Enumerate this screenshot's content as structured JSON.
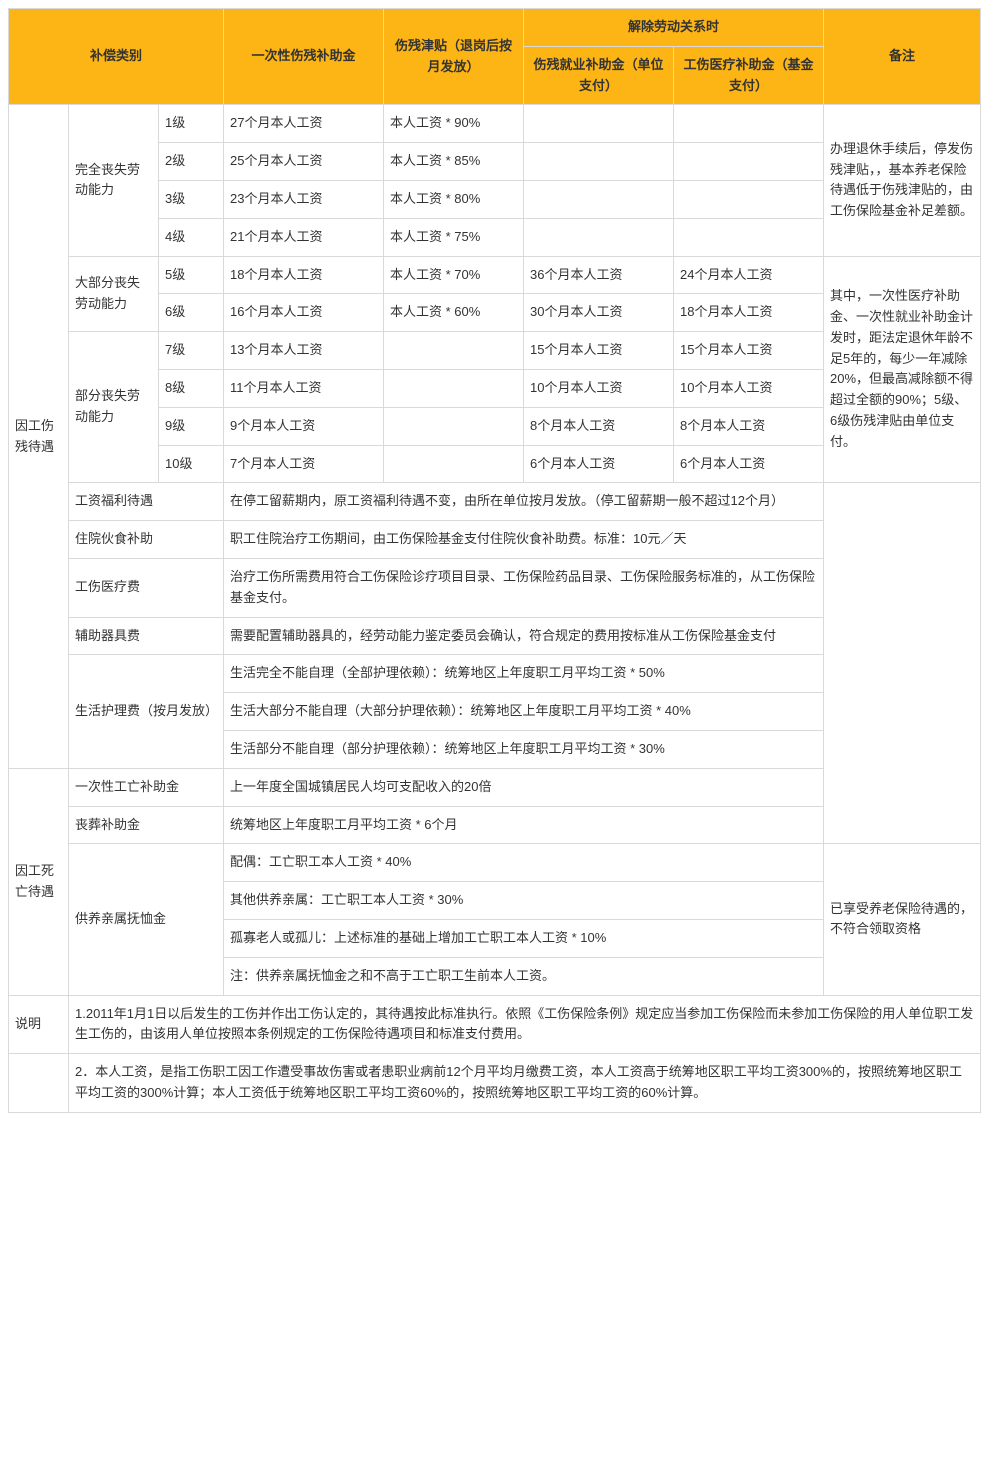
{
  "colors": {
    "header_bg": "#fdb515",
    "border": "#d9d9d9",
    "text": "#333333",
    "bg": "#ffffff"
  },
  "header": {
    "category": "补偿类别",
    "lump_disability": "一次性伤残补助金",
    "allowance": "伤残津贴（退岗后按月发放）",
    "termination": "解除劳动关系时",
    "employment_sub": "伤残就业补助金（单位支付）",
    "medical_sub": "工伤医疗补助金（基金支付）",
    "remark": "备注"
  },
  "section_injury": "因工伤残待遇",
  "section_death": "因工死亡待遇",
  "section_note": "说明",
  "group_full": "完全丧失劳动能力",
  "group_most": "大部分丧失劳动能力",
  "group_part": "部分丧失劳动能力",
  "grades": {
    "g1": {
      "lv": "1级",
      "lump": "27个月本人工资",
      "allow": "本人工资 * 90%"
    },
    "g2": {
      "lv": "2级",
      "lump": "25个月本人工资",
      "allow": "本人工资 * 85%"
    },
    "g3": {
      "lv": "3级",
      "lump": "23个月本人工资",
      "allow": "本人工资 * 80%"
    },
    "g4": {
      "lv": "4级",
      "lump": "21个月本人工资",
      "allow": "本人工资 * 75%"
    },
    "g5": {
      "lv": "5级",
      "lump": "18个月本人工资",
      "allow": "本人工资 * 70%",
      "emp": "36个月本人工资",
      "med": "24个月本人工资"
    },
    "g6": {
      "lv": "6级",
      "lump": "16个月本人工资",
      "allow": "本人工资 * 60%",
      "emp": "30个月本人工资",
      "med": "18个月本人工资"
    },
    "g7": {
      "lv": "7级",
      "lump": "13个月本人工资",
      "emp": "15个月本人工资",
      "med": "15个月本人工资"
    },
    "g8": {
      "lv": "8级",
      "lump": "11个月本人工资",
      "emp": "10个月本人工资",
      "med": "10个月本人工资"
    },
    "g9": {
      "lv": "9级",
      "lump": "9个月本人工资",
      "emp": "8个月本人工资",
      "med": "8个月本人工资"
    },
    "g10": {
      "lv": "10级",
      "lump": "7个月本人工资",
      "emp": "6个月本人工资",
      "med": "6个月本人工资"
    }
  },
  "remark1": "办理退休手续后，停发伤残津贴，，基本养老保险待遇低于伤残津贴的，由工伤保险基金补足差额。",
  "remark2": "其中，一次性医疗补助金、一次性就业补助金计发时，距法定退休年龄不足5年的，每少一年减除20%，但最高减除额不得超过全额的90%；5级、6级伤残津贴由单位支付。",
  "rows": {
    "wage_label": "工资福利待遇",
    "wage_text": "在停工留薪期内，原工资福利待遇不变，由所在单位按月发放。（停工留薪期一般不超过12个月）",
    "hosp_label": "住院伙食补助",
    "hosp_text": "职工住院治疗工伤期间，由工伤保险基金支付住院伙食补助费。标准：10元／天",
    "med_label": "工伤医疗费",
    "med_text": "治疗工伤所需费用符合工伤保险诊疗项目目录、工伤保险药品目录、工伤保险服务标准的，从工伤保险基金支付。",
    "aid_label": "辅助器具费",
    "aid_text": "需要配置辅助器具的，经劳动能力鉴定委员会确认，符合规定的费用按标准从工伤保险基金支付",
    "care_label": "生活护理费（按月发放）",
    "care1": "生活完全不能自理（全部护理依赖）：统筹地区上年度职工月平均工资 * 50%",
    "care2": "生活大部分不能自理（大部分护理依赖）：统筹地区上年度职工月平均工资 * 40%",
    "care3": "生活部分不能自理（部分护理依赖）：统筹地区上年度职工月平均工资 * 30%"
  },
  "death": {
    "lump_label": "一次性工亡补助金",
    "lump_text": "上一年度全国城镇居民人均可支配收入的20倍",
    "funeral_label": "丧葬补助金",
    "funeral_text": "统筹地区上年度职工月平均工资 * 6个月",
    "dep_label": "供养亲属抚恤金",
    "dep1": "配偶：工亡职工本人工资 * 40%",
    "dep2": "其他供养亲属：工亡职工本人工资 * 30%",
    "dep3": "孤寡老人或孤儿：上述标准的基础上增加工亡职工本人工资 * 10%",
    "dep4": "注：供养亲属抚恤金之和不高于工亡职工生前本人工资。",
    "dep_remark": "已享受养老保险待遇的，不符合领取资格"
  },
  "notes": {
    "n1": "1.2011年1月1日以后发生的工伤并作出工伤认定的，其待遇按此标准执行。依照《工伤保险条例》规定应当参加工伤保险而未参加工伤保险的用人单位职工发生工伤的，由该用人单位按照本条例规定的工伤保险待遇项目和标准支付费用。",
    "n2": "2．本人工资，是指工伤职工因工作遭受事故伤害或者患职业病前12个月平均月缴费工资，本人工资高于统筹地区职工平均工资300%的，按照统筹地区职工平均工资的300%计算；本人工资低于统筹地区职工平均工资60%的，按照统筹地区职工平均工资的60%计算。"
  }
}
